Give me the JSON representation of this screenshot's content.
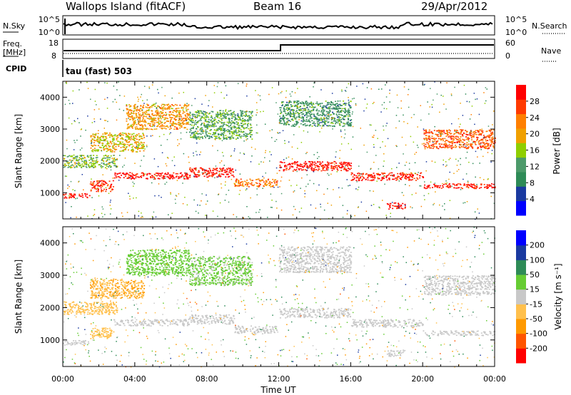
{
  "header": {
    "station": "Wallops Island (fitACF)",
    "beam": "Beam 16",
    "date": "29/Apr/2012"
  },
  "labels": {
    "nsky": "N.Sky",
    "nsearch": "N.Search",
    "freq_line1": "Freq.",
    "freq_line2": "[MHz]",
    "nave": "Nave",
    "cpid": "CPID",
    "cpid_value": "tau (fast) 503",
    "ylabel_power": "Slant Range [km]",
    "ylabel_velocity": "Slant Range [km]",
    "xlabel": "Time UT",
    "nsky_left_ticks": [
      "10^5",
      "10^0"
    ],
    "nsky_right_ticks": [
      "10^5",
      "10^0"
    ],
    "freq_left_ticks": [
      "18",
      "8"
    ],
    "freq_right_ticks": [
      "60",
      "0"
    ]
  },
  "colors": {
    "axis": "#000000",
    "power_scale": [
      "#0000ff",
      "#1a3aa0",
      "#2e8b57",
      "#4c9a6a",
      "#8fce00",
      "#f0a000",
      "#ff7f00",
      "#ff3a00",
      "#ff0000"
    ],
    "velocity_scale": [
      "#ff0000",
      "#ff5500",
      "#ff9900",
      "#ffc04d",
      "#c8c8c8",
      "#66cc33",
      "#2e8b57",
      "#1a3aa0",
      "#0000ff"
    ]
  },
  "chart_data": [
    {
      "type": "heatmap",
      "name": "power",
      "xlabel": "Time UT",
      "ylabel": "Slant Range [km]",
      "xlim_hours": [
        0,
        24
      ],
      "ylim": [
        180,
        4500
      ],
      "x_ticks": [
        "00:00",
        "04:00",
        "08:00",
        "12:00",
        "16:00",
        "20:00",
        "00:00"
      ],
      "y_ticks": [
        1000,
        2000,
        3000,
        4000
      ],
      "colorbar": {
        "label": "Power [dB]",
        "ticks": [
          "4",
          "8",
          "12",
          "16",
          "20",
          "24",
          "28"
        ],
        "range": [
          0,
          30
        ]
      },
      "echo_bands": [
        {
          "t0": 0.0,
          "t1": 1.5,
          "r0": 850,
          "r1": 1000,
          "level": 28
        },
        {
          "t0": 1.5,
          "t1": 2.8,
          "r0": 1050,
          "r1": 1400,
          "level": 26
        },
        {
          "t0": 2.8,
          "t1": 7.0,
          "r0": 1450,
          "r1": 1650,
          "level": 29
        },
        {
          "t0": 7.0,
          "t1": 9.5,
          "r0": 1500,
          "r1": 1800,
          "level": 28
        },
        {
          "t0": 9.5,
          "t1": 11.9,
          "r0": 1200,
          "r1": 1450,
          "level": 22
        },
        {
          "t0": 12.0,
          "t1": 16.0,
          "r0": 1700,
          "r1": 2000,
          "level": 28
        },
        {
          "t0": 16.0,
          "t1": 20.0,
          "r0": 1400,
          "r1": 1650,
          "level": 27
        },
        {
          "t0": 20.0,
          "t1": 24.0,
          "r0": 1150,
          "r1": 1300,
          "level": 28
        },
        {
          "t0": 18.0,
          "t1": 19.0,
          "r0": 500,
          "r1": 700,
          "level": 29
        },
        {
          "t0": 0.0,
          "t1": 3.0,
          "r0": 1800,
          "r1": 2200,
          "level": 14
        },
        {
          "t0": 1.5,
          "t1": 4.5,
          "r0": 2300,
          "r1": 2900,
          "level": 18
        },
        {
          "t0": 3.5,
          "t1": 7.0,
          "r0": 3000,
          "r1": 3800,
          "level": 20
        },
        {
          "t0": 7.0,
          "t1": 10.5,
          "r0": 2700,
          "r1": 3600,
          "level": 12
        },
        {
          "t0": 12.0,
          "t1": 16.0,
          "r0": 3100,
          "r1": 3900,
          "level": 10
        },
        {
          "t0": 20.0,
          "t1": 24.0,
          "r0": 2400,
          "r1": 3000,
          "level": 24
        }
      ]
    },
    {
      "type": "heatmap",
      "name": "velocity",
      "xlabel": "Time UT",
      "ylabel": "Slant Range [km]",
      "xlim_hours": [
        0,
        24
      ],
      "ylim": [
        180,
        4500
      ],
      "x_ticks": [
        "00:00",
        "04:00",
        "08:00",
        "12:00",
        "16:00",
        "20:00",
        "00:00"
      ],
      "y_ticks": [
        1000,
        2000,
        3000,
        4000
      ],
      "colorbar": {
        "label": "Velocity [m s⁻¹]",
        "ticks": [
          "-200",
          "-100",
          "-50",
          "-15",
          "15",
          "50",
          "100",
          "200"
        ],
        "range": [
          -250,
          250
        ]
      },
      "echo_bands": [
        {
          "t0": 0.0,
          "t1": 1.5,
          "r0": 850,
          "r1": 1000,
          "level": 0
        },
        {
          "t0": 1.5,
          "t1": 2.8,
          "r0": 1050,
          "r1": 1400,
          "level": -60
        },
        {
          "t0": 2.8,
          "t1": 7.0,
          "r0": 1450,
          "r1": 1650,
          "level": 0
        },
        {
          "t0": 7.0,
          "t1": 9.5,
          "r0": 1500,
          "r1": 1800,
          "level": 0
        },
        {
          "t0": 9.5,
          "t1": 11.9,
          "r0": 1200,
          "r1": 1450,
          "level": 0
        },
        {
          "t0": 12.0,
          "t1": 16.0,
          "r0": 1700,
          "r1": 2000,
          "level": 0
        },
        {
          "t0": 16.0,
          "t1": 20.0,
          "r0": 1400,
          "r1": 1650,
          "level": 0
        },
        {
          "t0": 20.0,
          "t1": 24.0,
          "r0": 1150,
          "r1": 1300,
          "level": 0
        },
        {
          "t0": 18.0,
          "t1": 19.0,
          "r0": 500,
          "r1": 700,
          "level": 0
        },
        {
          "t0": 0.0,
          "t1": 3.0,
          "r0": 1800,
          "r1": 2200,
          "level": -60
        },
        {
          "t0": 1.5,
          "t1": 4.5,
          "r0": 2300,
          "r1": 2900,
          "level": -80
        },
        {
          "t0": 3.5,
          "t1": 7.0,
          "r0": 3000,
          "r1": 3800,
          "level": 60
        },
        {
          "t0": 7.0,
          "t1": 10.5,
          "r0": 2700,
          "r1": 3600,
          "level": 40
        },
        {
          "t0": 12.0,
          "t1": 16.0,
          "r0": 3100,
          "r1": 3900,
          "level": 0
        },
        {
          "t0": 20.0,
          "t1": 24.0,
          "r0": 2400,
          "r1": 3000,
          "level": 0
        }
      ]
    }
  ]
}
